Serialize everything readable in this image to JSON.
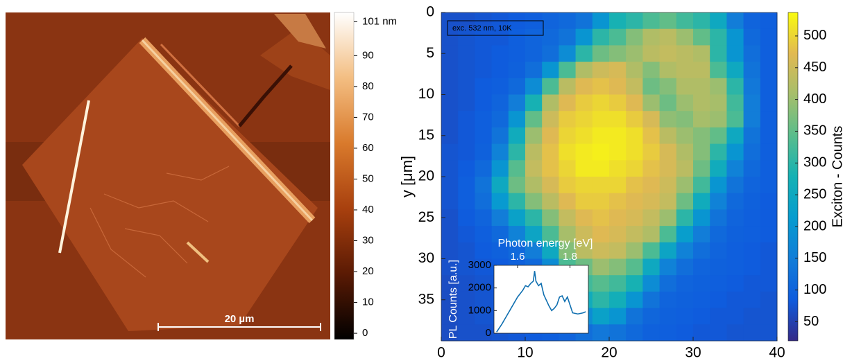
{
  "chart_data": [
    {
      "type": "image",
      "scale_bar_label": "20 µm",
      "colorbar": {
        "lim": [
          -2,
          104
        ],
        "ticks": [
          {
            "value": 101,
            "label": "101 nm"
          },
          90,
          80,
          70,
          60,
          50,
          40,
          30,
          20,
          10,
          0
        ]
      }
    },
    {
      "type": "heatmap",
      "ylabel": "y [μm]",
      "annotation": "exc. 532 nm, 10K",
      "x": [
        1,
        3,
        5,
        7,
        9,
        11,
        13,
        15,
        17,
        19,
        21,
        23,
        25,
        27,
        29,
        31,
        33,
        35,
        37,
        39
      ],
      "y": [
        1,
        3,
        5,
        7,
        9,
        11,
        13,
        15,
        17,
        19,
        21,
        23,
        25,
        27,
        29,
        31,
        33,
        35,
        37,
        39
      ],
      "values": [
        [
          70,
          70,
          75,
          80,
          85,
          90,
          100,
          110,
          130,
          200,
          280,
          300,
          330,
          350,
          320,
          300,
          250,
          150,
          100,
          90
        ],
        [
          70,
          75,
          80,
          80,
          90,
          100,
          110,
          130,
          200,
          300,
          330,
          380,
          420,
          430,
          400,
          350,
          300,
          200,
          110,
          90
        ],
        [
          70,
          75,
          80,
          85,
          90,
          100,
          120,
          180,
          300,
          360,
          380,
          400,
          430,
          440,
          430,
          420,
          300,
          200,
          120,
          90
        ],
        [
          70,
          75,
          80,
          85,
          95,
          120,
          200,
          330,
          420,
          450,
          460,
          420,
          380,
          420,
          430,
          430,
          330,
          250,
          130,
          90
        ],
        [
          70,
          75,
          85,
          90,
          110,
          180,
          330,
          430,
          470,
          480,
          470,
          440,
          360,
          380,
          420,
          420,
          400,
          300,
          140,
          90
        ],
        [
          70,
          75,
          85,
          100,
          150,
          280,
          420,
          470,
          490,
          500,
          490,
          470,
          400,
          360,
          400,
          420,
          410,
          320,
          150,
          90
        ],
        [
          70,
          80,
          90,
          110,
          200,
          350,
          450,
          490,
          500,
          510,
          510,
          490,
          460,
          390,
          380,
          410,
          400,
          330,
          150,
          90
        ],
        [
          70,
          80,
          90,
          130,
          260,
          400,
          470,
          500,
          510,
          520,
          520,
          510,
          480,
          430,
          400,
          380,
          350,
          250,
          130,
          90
        ],
        [
          75,
          80,
          95,
          160,
          300,
          430,
          480,
          510,
          520,
          525,
          520,
          510,
          490,
          460,
          420,
          380,
          300,
          200,
          120,
          90
        ],
        [
          75,
          85,
          110,
          200,
          340,
          440,
          480,
          500,
          520,
          520,
          510,
          500,
          480,
          460,
          430,
          360,
          260,
          160,
          110,
          90
        ],
        [
          75,
          90,
          130,
          250,
          360,
          420,
          460,
          490,
          500,
          500,
          500,
          480,
          470,
          450,
          400,
          320,
          200,
          130,
          100,
          90
        ],
        [
          75,
          90,
          120,
          210,
          300,
          380,
          430,
          470,
          490,
          490,
          480,
          470,
          460,
          440,
          360,
          260,
          160,
          110,
          95,
          85
        ],
        [
          70,
          85,
          100,
          150,
          230,
          300,
          380,
          440,
          470,
          480,
          470,
          460,
          440,
          400,
          300,
          200,
          130,
          100,
          90,
          85
        ],
        [
          70,
          80,
          90,
          110,
          160,
          240,
          330,
          410,
          450,
          470,
          460,
          440,
          420,
          330,
          220,
          150,
          110,
          95,
          90,
          85
        ],
        [
          70,
          75,
          85,
          95,
          110,
          150,
          250,
          380,
          430,
          450,
          440,
          400,
          330,
          240,
          160,
          120,
          100,
          90,
          85,
          80
        ],
        [
          70,
          75,
          80,
          85,
          95,
          110,
          180,
          330,
          360,
          400,
          380,
          340,
          250,
          160,
          120,
          100,
          95,
          90,
          85,
          80
        ],
        [
          65,
          70,
          75,
          80,
          90,
          100,
          130,
          260,
          320,
          340,
          320,
          280,
          180,
          120,
          100,
          95,
          90,
          85,
          80,
          80
        ],
        [
          65,
          70,
          75,
          80,
          85,
          95,
          110,
          160,
          260,
          300,
          270,
          200,
          130,
          100,
          95,
          90,
          85,
          80,
          80,
          75
        ],
        [
          65,
          70,
          75,
          80,
          85,
          90,
          100,
          120,
          180,
          230,
          200,
          130,
          105,
          95,
          90,
          85,
          80,
          80,
          75,
          75
        ],
        [
          65,
          70,
          70,
          75,
          80,
          85,
          90,
          100,
          120,
          140,
          130,
          110,
          95,
          90,
          85,
          80,
          80,
          75,
          75,
          75
        ]
      ],
      "xlim": [
        0,
        40
      ],
      "ylim": [
        40,
        0
      ],
      "xticks": [
        0,
        10,
        20,
        30,
        40
      ],
      "yticks": [
        0,
        5,
        10,
        15,
        20,
        25,
        30,
        35
      ],
      "colormap": "parula",
      "colorbar": {
        "lim": [
          20,
          537
        ],
        "ticks": [
          50,
          100,
          150,
          200,
          250,
          300,
          350,
          400,
          450,
          500
        ],
        "label": "Exciton - Counts"
      }
    },
    {
      "type": "line",
      "xlabel": "Photon energy [eV]",
      "ylabel": "PL Counts [a.u.]",
      "x": [
        1.52,
        1.54,
        1.56,
        1.58,
        1.6,
        1.62,
        1.63,
        1.64,
        1.65,
        1.66,
        1.665,
        1.67,
        1.68,
        1.69,
        1.7,
        1.72,
        1.73,
        1.74,
        1.75,
        1.76,
        1.77,
        1.78,
        1.79,
        1.8,
        1.81,
        1.83,
        1.85,
        1.86
      ],
      "series": [
        {
          "color": "#0f6fb0",
          "values": [
            50,
            400,
            800,
            1200,
            1600,
            1900,
            2100,
            2050,
            2200,
            2300,
            2750,
            2300,
            2100,
            2200,
            1700,
            1200,
            1000,
            1100,
            1250,
            1600,
            1650,
            1400,
            1600,
            1250,
            900,
            850,
            900,
            950
          ]
        }
      ],
      "xlim": [
        1.51,
        1.87
      ],
      "xticks": [
        1.6,
        1.8
      ],
      "ylim": [
        0,
        3000
      ],
      "yticks": [
        0,
        1000,
        2000,
        3000
      ]
    }
  ]
}
